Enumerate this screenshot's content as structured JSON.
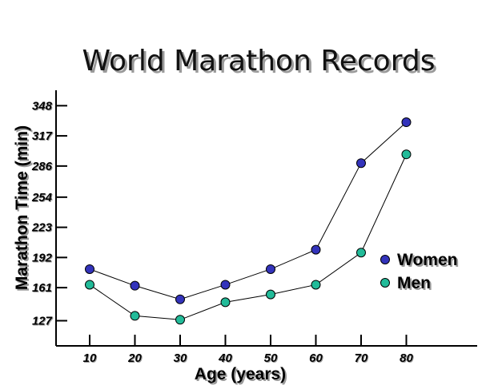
{
  "chart_data": {
    "type": "line",
    "title": "World Marathon Records",
    "xlabel": "Age (years)",
    "ylabel": "Marathon Time (min)",
    "x": [
      10,
      20,
      30,
      40,
      50,
      60,
      70,
      80
    ],
    "x_ticks": [
      "10",
      "20",
      "30",
      "40",
      "50",
      "60",
      "70",
      "80"
    ],
    "y_ticks": [
      "348",
      "317",
      "286",
      "254",
      "223",
      "192",
      "161",
      "127"
    ],
    "series": [
      {
        "name": "Women",
        "color": "#3333bb",
        "values": [
          180,
          163,
          149,
          164,
          180,
          200,
          289,
          331
        ]
      },
      {
        "name": "Men",
        "color": "#22bb99",
        "values": [
          164,
          132,
          128,
          146,
          154,
          164,
          197,
          298
        ]
      }
    ],
    "legend_position": "right",
    "grid": false
  }
}
